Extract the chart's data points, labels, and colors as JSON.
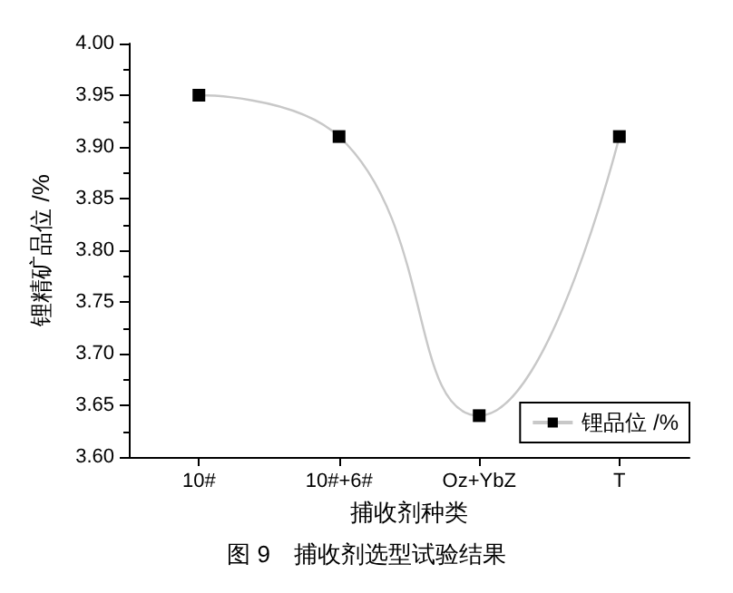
{
  "chart_data": {
    "type": "line",
    "title": "图 9　捕收剂选型试验结果",
    "xlabel": "捕收剂种类",
    "ylabel": "锂精矿品位 /%",
    "categories": [
      "10#",
      "10#+6#",
      "Oz+YbZ",
      "T"
    ],
    "series": [
      {
        "name": "锂品位 /%",
        "color": "#000000",
        "values": [
          3.95,
          3.91,
          3.64,
          3.91
        ]
      }
    ],
    "ylim": [
      3.6,
      4.0
    ],
    "yticks": [
      {
        "value": 3.6,
        "label": "3.60"
      },
      3.65,
      {
        "value": 3.7,
        "label": "3.70"
      },
      3.75,
      {
        "value": 3.8,
        "label": "3.80"
      },
      3.85,
      {
        "value": 3.9,
        "label": "3.90"
      },
      3.95,
      {
        "value": 4.0,
        "label": "4.00"
      }
    ],
    "grid": false,
    "legend": "bottom right",
    "marker": "square",
    "line_style": "solid"
  }
}
